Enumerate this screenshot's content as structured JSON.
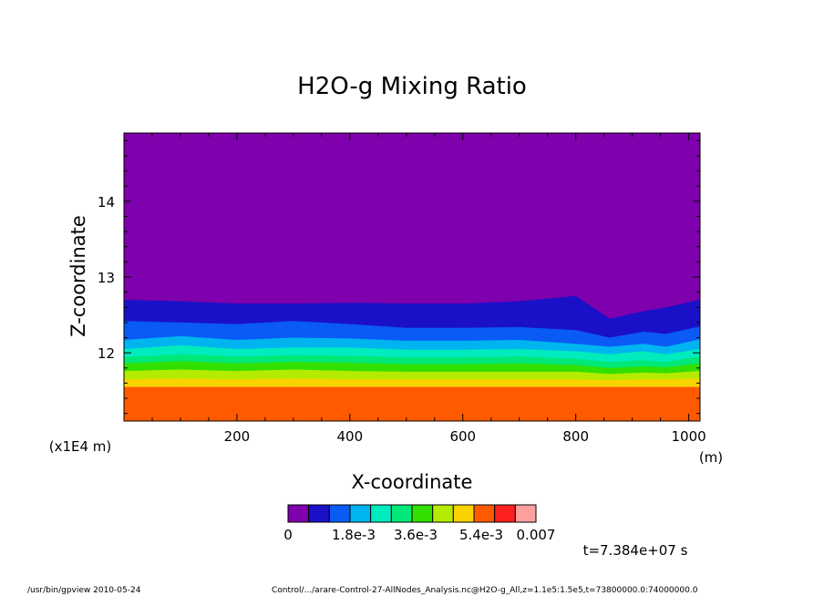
{
  "chart_data": {
    "type": "heatmap",
    "title": "H2O-g Mixing Ratio",
    "xlabel": "X-coordinate",
    "ylabel": "Z-coordinate",
    "x_unit": "(m)",
    "y_scale_note": "(x1E4 m)",
    "xlim": [
      0,
      1020
    ],
    "ylim": [
      11.1,
      14.9
    ],
    "x_ticks": [
      200,
      400,
      600,
      800,
      1000
    ],
    "x_tick_labels": [
      "200",
      "400",
      "600",
      "800",
      "1000"
    ],
    "y_ticks": [
      12,
      13,
      14
    ],
    "y_tick_labels": [
      "12",
      "13",
      "14"
    ],
    "grid": false,
    "time_label": "t=7.384e+07 s",
    "colorbar": {
      "levels": [
        0,
        0.0006,
        0.0012,
        0.0018,
        0.0024,
        0.003,
        0.0036,
        0.0042,
        0.0048,
        0.0054,
        0.006,
        0.0066
      ],
      "colors": [
        "#7f00ad",
        "#1a10c8",
        "#0a5af5",
        "#00b4f0",
        "#00ebbe",
        "#00e878",
        "#32e000",
        "#b4eb00",
        "#fad200",
        "#ff5a00",
        "#ff2020",
        "#ffa0a0"
      ],
      "tick_labels": [
        "0",
        "1.8e-3",
        "3.6e-3",
        "5.4e-3",
        "0.007"
      ]
    },
    "band_tops_z": [
      {
        "x": 0,
        "z": [
          11.55,
          11.65,
          11.76,
          11.86,
          11.94,
          12.05,
          12.17,
          12.42,
          12.7
        ]
      },
      {
        "x": 100,
        "z": [
          11.55,
          11.66,
          11.78,
          11.89,
          11.98,
          12.1,
          12.22,
          12.4,
          12.68
        ]
      },
      {
        "x": 200,
        "z": [
          11.55,
          11.65,
          11.76,
          11.86,
          11.95,
          12.05,
          12.17,
          12.38,
          12.65
        ]
      },
      {
        "x": 300,
        "z": [
          11.55,
          11.66,
          11.78,
          11.88,
          11.97,
          12.07,
          12.2,
          12.42,
          12.65
        ]
      },
      {
        "x": 400,
        "z": [
          11.55,
          11.65,
          11.76,
          11.87,
          11.96,
          12.07,
          12.19,
          12.38,
          12.66
        ]
      },
      {
        "x": 500,
        "z": [
          11.55,
          11.65,
          11.75,
          11.85,
          11.94,
          12.04,
          12.16,
          12.33,
          12.65
        ]
      },
      {
        "x": 600,
        "z": [
          11.55,
          11.65,
          11.75,
          11.85,
          11.94,
          12.04,
          12.16,
          12.33,
          12.65
        ]
      },
      {
        "x": 700,
        "z": [
          11.55,
          11.65,
          11.75,
          11.86,
          11.95,
          12.05,
          12.17,
          12.34,
          12.68
        ]
      },
      {
        "x": 800,
        "z": [
          11.55,
          11.65,
          11.75,
          11.84,
          11.92,
          12.02,
          12.12,
          12.3,
          12.75
        ]
      },
      {
        "x": 860,
        "z": [
          11.55,
          11.64,
          11.72,
          11.8,
          11.88,
          11.98,
          12.08,
          12.2,
          12.45
        ]
      },
      {
        "x": 920,
        "z": [
          11.55,
          11.65,
          11.74,
          11.82,
          11.9,
          12.02,
          12.12,
          12.28,
          12.55
        ]
      },
      {
        "x": 960,
        "z": [
          11.55,
          11.65,
          11.73,
          11.81,
          11.88,
          11.98,
          12.08,
          12.25,
          12.6
        ]
      },
      {
        "x": 1020,
        "z": [
          11.55,
          11.66,
          11.76,
          11.86,
          11.95,
          12.05,
          12.18,
          12.35,
          12.7
        ]
      }
    ]
  },
  "footer": {
    "left": "/usr/bin/gpview  2010-05-24",
    "right": "Control/.../arare-Control-27-AllNodes_Analysis.nc@H2O-g_All,z=1.1e5:1.5e5,t=73800000.0:74000000.0"
  }
}
